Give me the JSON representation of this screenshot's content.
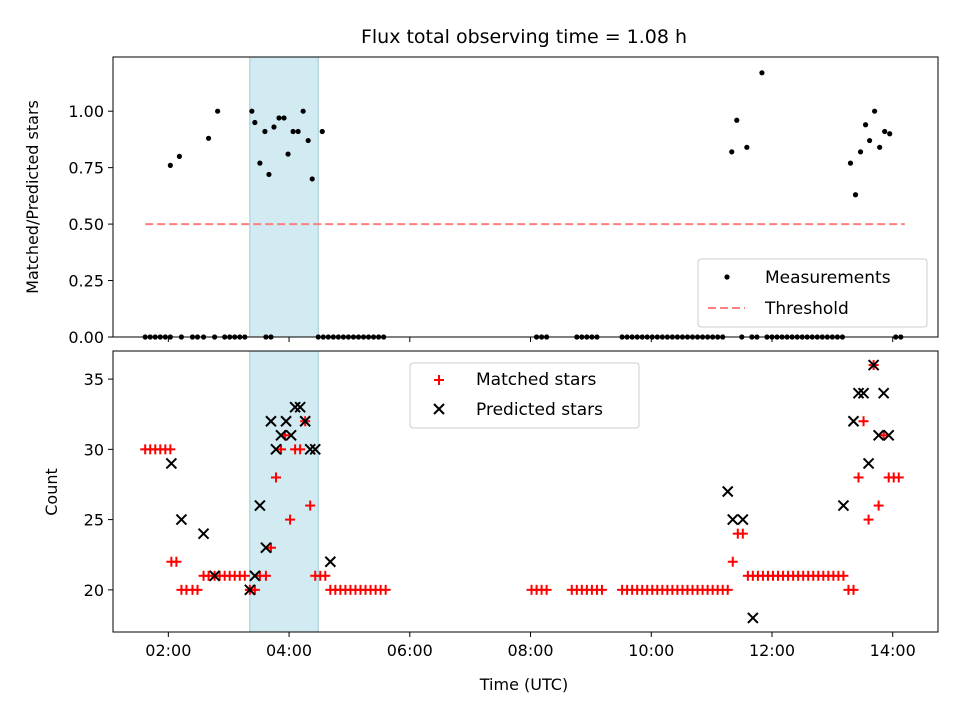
{
  "title": "Flux total observing time = 1.08 h",
  "colors": {
    "measurement": "#000000",
    "threshold": "#ff7f7f",
    "matched": "#ff0000",
    "predicted": "#000000",
    "highlight": "#add8e6"
  },
  "chart_data": [
    {
      "type": "scatter",
      "title": "Flux total observing time = 1.08 h",
      "xlabel": "",
      "ylabel": "Matched/Predicted stars",
      "xlim": [
        "01:05",
        "14:45"
      ],
      "ylim": [
        0,
        1.24
      ],
      "yticks": [
        "0.00",
        "0.25",
        "0.50",
        "0.75",
        "1.00"
      ],
      "highlight_span": {
        "from": "03:21",
        "to": "04:29"
      },
      "legend": {
        "position": "bottom-right",
        "items": [
          "Measurements",
          "Threshold"
        ]
      },
      "threshold": {
        "name": "Threshold",
        "value": 0.5,
        "from": "01:37",
        "to": "14:12"
      },
      "series": [
        {
          "name": "Measurements",
          "points": [
            [
              "02:02",
              0.76
            ],
            [
              "02:11",
              0.8
            ],
            [
              "02:40",
              0.88
            ],
            [
              "02:49",
              1.0
            ],
            [
              "03:23",
              1.0
            ],
            [
              "03:26",
              0.95
            ],
            [
              "03:31",
              0.77
            ],
            [
              "03:36",
              0.91
            ],
            [
              "03:40",
              0.72
            ],
            [
              "03:45",
              0.93
            ],
            [
              "03:50",
              0.97
            ],
            [
              "03:55",
              0.97
            ],
            [
              "03:59",
              0.81
            ],
            [
              "04:04",
              0.91
            ],
            [
              "04:09",
              0.91
            ],
            [
              "04:14",
              1.0
            ],
            [
              "04:19",
              0.87
            ],
            [
              "04:23",
              0.7
            ],
            [
              "04:33",
              0.91
            ],
            [
              "11:20",
              0.82
            ],
            [
              "11:25",
              0.96
            ],
            [
              "11:35",
              0.84
            ],
            [
              "11:50",
              1.17
            ],
            [
              "13:18",
              0.77
            ],
            [
              "13:23",
              0.63
            ],
            [
              "13:28",
              0.82
            ],
            [
              "13:33",
              0.94
            ],
            [
              "13:37",
              0.87
            ],
            [
              "13:42",
              1.0
            ],
            [
              "13:47",
              0.84
            ],
            [
              "13:52",
              0.91
            ],
            [
              "13:57",
              0.9
            ],
            [
              "01:37",
              0
            ],
            [
              "01:42",
              0
            ],
            [
              "01:47",
              0
            ],
            [
              "01:52",
              0
            ],
            [
              "01:57",
              0
            ],
            [
              "02:02",
              0
            ],
            [
              "02:13",
              0
            ],
            [
              "02:24",
              0
            ],
            [
              "02:29",
              0
            ],
            [
              "02:35",
              0
            ],
            [
              "02:46",
              0
            ],
            [
              "02:56",
              0
            ],
            [
              "03:01",
              0
            ],
            [
              "03:06",
              0
            ],
            [
              "03:11",
              0
            ],
            [
              "03:16",
              0
            ],
            [
              "03:37",
              0
            ],
            [
              "03:42",
              0
            ],
            [
              "04:29",
              0
            ],
            [
              "04:34",
              0
            ],
            [
              "04:39",
              0
            ],
            [
              "04:44",
              0
            ],
            [
              "04:49",
              0
            ],
            [
              "04:54",
              0
            ],
            [
              "04:59",
              0
            ],
            [
              "05:04",
              0
            ],
            [
              "05:09",
              0
            ],
            [
              "05:14",
              0
            ],
            [
              "05:19",
              0
            ],
            [
              "05:24",
              0
            ],
            [
              "05:29",
              0
            ],
            [
              "05:34",
              0
            ],
            [
              "08:06",
              0
            ],
            [
              "08:11",
              0
            ],
            [
              "08:16",
              0
            ],
            [
              "08:46",
              0
            ],
            [
              "08:51",
              0
            ],
            [
              "08:56",
              0
            ],
            [
              "09:01",
              0
            ],
            [
              "09:06",
              0
            ],
            [
              "09:31",
              0
            ],
            [
              "09:36",
              0
            ],
            [
              "09:41",
              0
            ],
            [
              "09:46",
              0
            ],
            [
              "09:51",
              0
            ],
            [
              "09:56",
              0
            ],
            [
              "10:01",
              0
            ],
            [
              "10:06",
              0
            ],
            [
              "10:11",
              0
            ],
            [
              "10:16",
              0
            ],
            [
              "10:21",
              0
            ],
            [
              "10:26",
              0
            ],
            [
              "10:31",
              0
            ],
            [
              "10:36",
              0
            ],
            [
              "10:41",
              0
            ],
            [
              "10:46",
              0
            ],
            [
              "10:51",
              0
            ],
            [
              "10:56",
              0
            ],
            [
              "11:01",
              0
            ],
            [
              "11:06",
              0
            ],
            [
              "11:11",
              0
            ],
            [
              "11:30",
              0
            ],
            [
              "11:40",
              0
            ],
            [
              "11:45",
              0
            ],
            [
              "11:55",
              0
            ],
            [
              "12:00",
              0
            ],
            [
              "12:05",
              0
            ],
            [
              "12:10",
              0
            ],
            [
              "12:15",
              0
            ],
            [
              "12:20",
              0
            ],
            [
              "12:25",
              0
            ],
            [
              "12:30",
              0
            ],
            [
              "12:35",
              0
            ],
            [
              "12:40",
              0
            ],
            [
              "12:45",
              0
            ],
            [
              "12:50",
              0
            ],
            [
              "12:55",
              0
            ],
            [
              "13:00",
              0
            ],
            [
              "13:05",
              0
            ],
            [
              "13:10",
              0
            ],
            [
              "14:03",
              0
            ],
            [
              "14:08",
              0
            ]
          ]
        }
      ]
    },
    {
      "type": "scatter",
      "title": "",
      "xlabel": "Time (UTC)",
      "ylabel": "Count",
      "xlim": [
        "01:05",
        "14:45"
      ],
      "ylim": [
        17,
        37
      ],
      "xticks": [
        "02:00",
        "04:00",
        "06:00",
        "08:00",
        "10:00",
        "12:00",
        "14:00"
      ],
      "yticks": [
        "20",
        "25",
        "30",
        "35"
      ],
      "highlight_span": {
        "from": "03:21",
        "to": "04:29"
      },
      "legend": {
        "position": "top-center",
        "items": [
          "Matched stars",
          "Predicted stars"
        ]
      },
      "series": [
        {
          "name": "Matched stars",
          "points": [
            [
              "01:37",
              30
            ],
            [
              "01:42",
              30
            ],
            [
              "01:47",
              30
            ],
            [
              "01:52",
              30
            ],
            [
              "01:57",
              30
            ],
            [
              "02:02",
              30
            ],
            [
              "02:03",
              22
            ],
            [
              "02:08",
              22
            ],
            [
              "02:13",
              20
            ],
            [
              "02:18",
              20
            ],
            [
              "02:24",
              20
            ],
            [
              "02:29",
              20
            ],
            [
              "02:35",
              21
            ],
            [
              "02:40",
              21
            ],
            [
              "02:46",
              21
            ],
            [
              "02:51",
              21
            ],
            [
              "02:56",
              21
            ],
            [
              "03:01",
              21
            ],
            [
              "03:06",
              21
            ],
            [
              "03:11",
              21
            ],
            [
              "03:16",
              21
            ],
            [
              "03:21",
              20
            ],
            [
              "03:26",
              20
            ],
            [
              "03:31",
              21
            ],
            [
              "03:37",
              21
            ],
            [
              "03:42",
              23
            ],
            [
              "03:47",
              28
            ],
            [
              "03:52",
              30
            ],
            [
              "03:56",
              31
            ],
            [
              "04:01",
              25
            ],
            [
              "04:06",
              30
            ],
            [
              "04:11",
              30
            ],
            [
              "04:16",
              32
            ],
            [
              "04:21",
              26
            ],
            [
              "04:26",
              21
            ],
            [
              "04:31",
              21
            ],
            [
              "04:36",
              21
            ],
            [
              "04:41",
              20
            ],
            [
              "04:46",
              20
            ],
            [
              "04:51",
              20
            ],
            [
              "04:56",
              20
            ],
            [
              "05:01",
              20
            ],
            [
              "05:06",
              20
            ],
            [
              "05:11",
              20
            ],
            [
              "05:16",
              20
            ],
            [
              "05:21",
              20
            ],
            [
              "05:26",
              20
            ],
            [
              "05:31",
              20
            ],
            [
              "05:36",
              20
            ],
            [
              "08:01",
              20
            ],
            [
              "08:06",
              20
            ],
            [
              "08:11",
              20
            ],
            [
              "08:16",
              20
            ],
            [
              "08:41",
              20
            ],
            [
              "08:46",
              20
            ],
            [
              "08:51",
              20
            ],
            [
              "08:56",
              20
            ],
            [
              "09:01",
              20
            ],
            [
              "09:06",
              20
            ],
            [
              "09:11",
              20
            ],
            [
              "09:31",
              20
            ],
            [
              "09:36",
              20
            ],
            [
              "09:41",
              20
            ],
            [
              "09:46",
              20
            ],
            [
              "09:51",
              20
            ],
            [
              "09:56",
              20
            ],
            [
              "10:01",
              20
            ],
            [
              "10:06",
              20
            ],
            [
              "10:11",
              20
            ],
            [
              "10:16",
              20
            ],
            [
              "10:21",
              20
            ],
            [
              "10:26",
              20
            ],
            [
              "10:31",
              20
            ],
            [
              "10:36",
              20
            ],
            [
              "10:41",
              20
            ],
            [
              "10:46",
              20
            ],
            [
              "10:51",
              20
            ],
            [
              "10:56",
              20
            ],
            [
              "11:01",
              20
            ],
            [
              "11:06",
              20
            ],
            [
              "11:11",
              20
            ],
            [
              "11:16",
              20
            ],
            [
              "11:21",
              22
            ],
            [
              "11:26",
              24
            ],
            [
              "11:31",
              24
            ],
            [
              "11:36",
              21
            ],
            [
              "11:41",
              21
            ],
            [
              "11:46",
              21
            ],
            [
              "11:51",
              21
            ],
            [
              "11:56",
              21
            ],
            [
              "12:01",
              21
            ],
            [
              "12:06",
              21
            ],
            [
              "12:11",
              21
            ],
            [
              "12:16",
              21
            ],
            [
              "12:21",
              21
            ],
            [
              "12:26",
              21
            ],
            [
              "12:31",
              21
            ],
            [
              "12:36",
              21
            ],
            [
              "12:41",
              21
            ],
            [
              "12:46",
              21
            ],
            [
              "12:51",
              21
            ],
            [
              "12:56",
              21
            ],
            [
              "13:01",
              21
            ],
            [
              "13:06",
              21
            ],
            [
              "13:11",
              21
            ],
            [
              "13:16",
              20
            ],
            [
              "13:21",
              20
            ],
            [
              "13:26",
              28
            ],
            [
              "13:31",
              32
            ],
            [
              "13:36",
              25
            ],
            [
              "13:41",
              36
            ],
            [
              "13:46",
              26
            ],
            [
              "13:51",
              31
            ],
            [
              "13:56",
              28
            ],
            [
              "14:01",
              28
            ],
            [
              "14:06",
              28
            ]
          ]
        },
        {
          "name": "Predicted stars",
          "points": [
            [
              "02:03",
              29
            ],
            [
              "02:13",
              25
            ],
            [
              "02:35",
              24
            ],
            [
              "02:46",
              21
            ],
            [
              "03:21",
              20
            ],
            [
              "03:26",
              21
            ],
            [
              "03:31",
              26
            ],
            [
              "03:37",
              23
            ],
            [
              "03:42",
              32
            ],
            [
              "03:47",
              30
            ],
            [
              "03:52",
              31
            ],
            [
              "03:57",
              32
            ],
            [
              "04:02",
              31
            ],
            [
              "04:06",
              33
            ],
            [
              "04:11",
              33
            ],
            [
              "04:16",
              32
            ],
            [
              "04:21",
              30
            ],
            [
              "04:26",
              30
            ],
            [
              "04:41",
              22
            ],
            [
              "11:16",
              27
            ],
            [
              "11:21",
              25
            ],
            [
              "11:31",
              25
            ],
            [
              "11:41",
              18
            ],
            [
              "13:11",
              26
            ],
            [
              "13:21",
              32
            ],
            [
              "13:26",
              34
            ],
            [
              "13:31",
              34
            ],
            [
              "13:36",
              29
            ],
            [
              "13:41",
              36
            ],
            [
              "13:46",
              31
            ],
            [
              "13:51",
              34
            ],
            [
              "13:56",
              31
            ]
          ]
        }
      ]
    }
  ]
}
